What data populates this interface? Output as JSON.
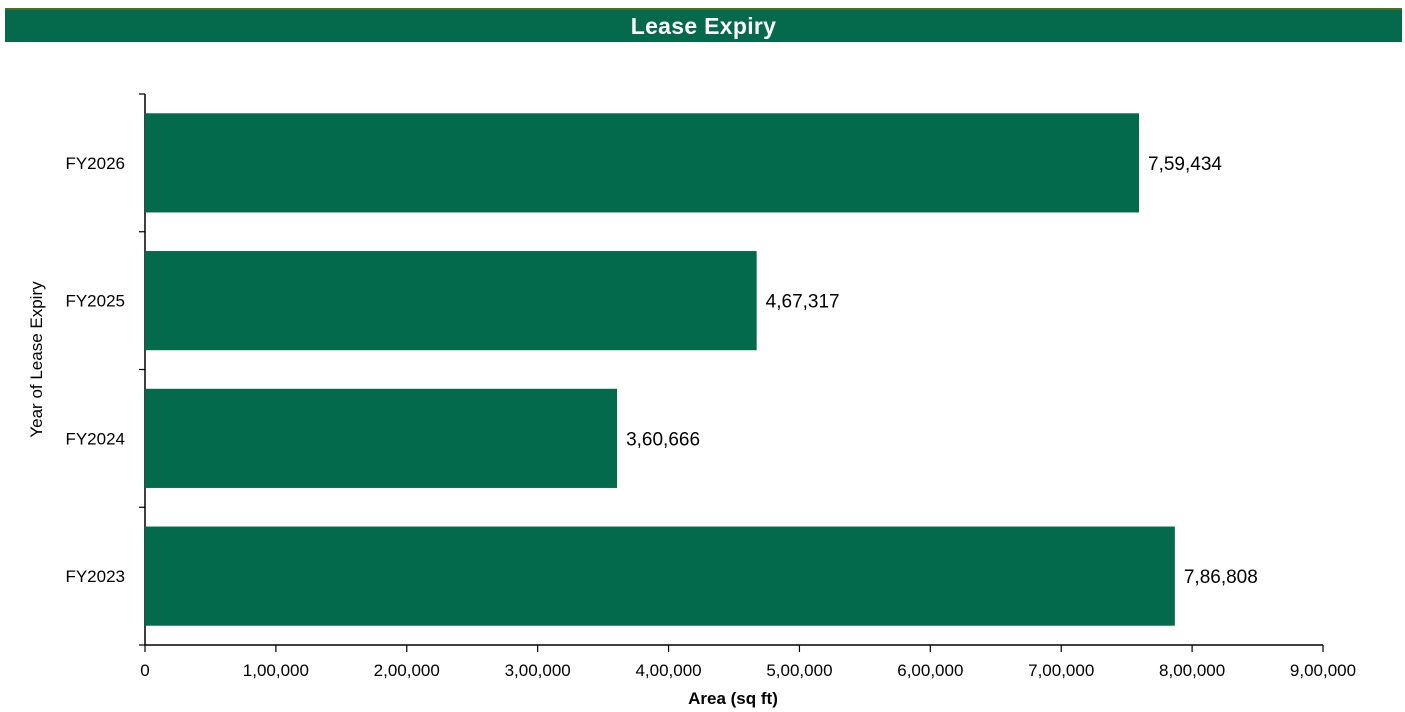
{
  "header": {
    "title": "Lease Expiry"
  },
  "colors": {
    "header_bg": "#046a4b",
    "bar_fill": "#036b4b",
    "axis": "#000000"
  },
  "chart_data": {
    "type": "bar",
    "orientation": "horizontal",
    "title": "Lease Expiry",
    "xlabel": "Area (sq ft)",
    "ylabel": "Year of Lease Expiry",
    "categories": [
      "FY2023",
      "FY2024",
      "FY2025",
      "FY2026"
    ],
    "values": [
      786808,
      360666,
      467317,
      759434
    ],
    "value_labels": [
      "7,86,808",
      "3,60,666",
      "4,67,317",
      "7,59,434"
    ],
    "xlim": [
      0,
      900000
    ],
    "xticks": [
      0,
      100000,
      200000,
      300000,
      400000,
      500000,
      600000,
      700000,
      800000,
      900000
    ],
    "xtick_labels": [
      "0",
      "1,00,000",
      "2,00,000",
      "3,00,000",
      "4,00,000",
      "5,00,000",
      "6,00,000",
      "7,00,000",
      "8,00,000",
      "9,00,000"
    ],
    "grid": false,
    "legend": "none"
  }
}
